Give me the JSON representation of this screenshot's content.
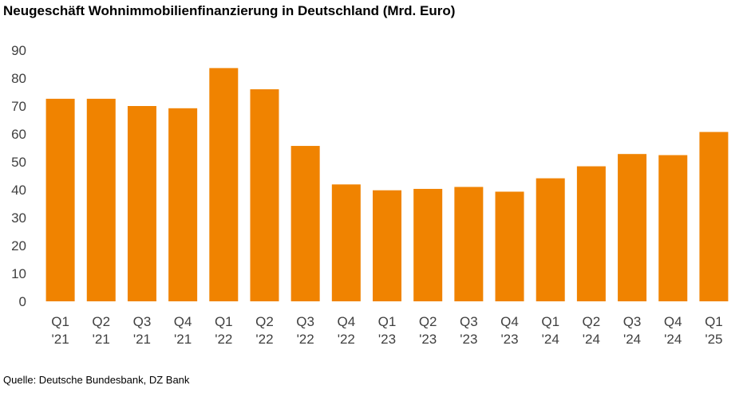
{
  "chart_data": {
    "type": "bar",
    "title": "Neugeschäft Wohnimmobilienfinanzierung in Deutschland (Mrd. Euro)",
    "xlabel": "",
    "ylabel": "",
    "ylim": [
      0,
      90
    ],
    "yticks": [
      0,
      10,
      20,
      30,
      40,
      50,
      60,
      70,
      80,
      90
    ],
    "grid": false,
    "bar_color": "#F08300",
    "categories": [
      [
        "Q1",
        "'21"
      ],
      [
        "Q2",
        "'21"
      ],
      [
        "Q3",
        "'21"
      ],
      [
        "Q4",
        "'21"
      ],
      [
        "Q1",
        "'22"
      ],
      [
        "Q2",
        "'22"
      ],
      [
        "Q3",
        "'22"
      ],
      [
        "Q4",
        "'22"
      ],
      [
        "Q1",
        "'23"
      ],
      [
        "Q2",
        "'23"
      ],
      [
        "Q3",
        "'23"
      ],
      [
        "Q4",
        "'23"
      ],
      [
        "Q1",
        "'24"
      ],
      [
        "Q2",
        "'24"
      ],
      [
        "Q3",
        "'24"
      ],
      [
        "Q4",
        "'24"
      ],
      [
        "Q1",
        "'25"
      ]
    ],
    "values": [
      72.6,
      72.6,
      70.0,
      69.2,
      83.6,
      76.0,
      55.7,
      41.9,
      39.8,
      40.3,
      41.0,
      39.3,
      44.1,
      48.4,
      52.8,
      52.4,
      60.7
    ]
  },
  "source": "Quelle: Deutsche Bundesbank, DZ Bank"
}
